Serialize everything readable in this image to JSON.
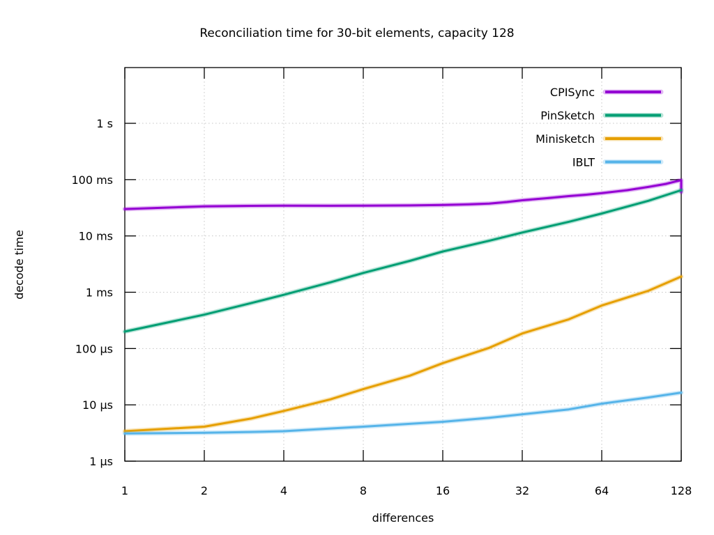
{
  "page": {
    "background": "#ffffff",
    "text_color": "#000000",
    "grid_color": "#c4c4c4"
  },
  "chart_data": {
    "type": "line",
    "title": "Reconciliation time for 30-bit elements, capacity 128",
    "xlabel": "differences",
    "ylabel": "decode time",
    "x_scale": "log2",
    "y_scale": "log10",
    "grid": true,
    "legend_position": "top-right-inside",
    "x_range": [
      1,
      128
    ],
    "y_range_us": [
      1,
      8600000
    ],
    "x_ticks": [
      1,
      2,
      4,
      8,
      16,
      32,
      64,
      128
    ],
    "y_ticks": [
      {
        "label": "1 µs",
        "us": 1
      },
      {
        "label": "10 µs",
        "us": 10
      },
      {
        "label": "100 µs",
        "us": 100
      },
      {
        "label": "1 ms",
        "us": 1000
      },
      {
        "label": "10 ms",
        "us": 10000
      },
      {
        "label": "100 ms",
        "us": 100000
      },
      {
        "label": "1 s",
        "us": 1000000
      }
    ],
    "series": [
      {
        "name": "CPISync",
        "color": "#9400d3",
        "points_us": [
          [
            1,
            30000
          ],
          [
            2,
            33500
          ],
          [
            3,
            34200
          ],
          [
            4,
            34500
          ],
          [
            6,
            34300
          ],
          [
            8,
            34500
          ],
          [
            12,
            34800
          ],
          [
            16,
            35500
          ],
          [
            20,
            36300
          ],
          [
            24,
            37500
          ],
          [
            28,
            40000
          ],
          [
            32,
            43000
          ],
          [
            40,
            47000
          ],
          [
            48,
            51000
          ],
          [
            56,
            54000
          ],
          [
            64,
            57500
          ],
          [
            80,
            65000
          ],
          [
            96,
            74000
          ],
          [
            112,
            84000
          ],
          [
            122,
            93000
          ],
          [
            128,
            98000
          ],
          [
            128,
            60000
          ]
        ]
      },
      {
        "name": "PinSketch",
        "color": "#009e73",
        "points_us": [
          [
            1,
            200
          ],
          [
            2,
            400
          ],
          [
            3,
            640
          ],
          [
            4,
            900
          ],
          [
            6,
            1500
          ],
          [
            8,
            2200
          ],
          [
            12,
            3600
          ],
          [
            16,
            5300
          ],
          [
            24,
            8200
          ],
          [
            32,
            11500
          ],
          [
            48,
            17800
          ],
          [
            64,
            25000
          ],
          [
            96,
            42000
          ],
          [
            128,
            65000
          ]
        ]
      },
      {
        "name": "Minisketch",
        "color": "#e69f00",
        "points_us": [
          [
            1,
            3.4
          ],
          [
            2,
            4.1
          ],
          [
            3,
            5.7
          ],
          [
            4,
            7.8
          ],
          [
            6,
            12.5
          ],
          [
            8,
            19
          ],
          [
            12,
            33
          ],
          [
            16,
            55
          ],
          [
            24,
            103
          ],
          [
            32,
            185
          ],
          [
            48,
            330
          ],
          [
            64,
            580
          ],
          [
            96,
            1060
          ],
          [
            128,
            1900
          ]
        ]
      },
      {
        "name": "IBLT",
        "color": "#56b4e9",
        "points_us": [
          [
            1,
            3.1
          ],
          [
            2,
            3.2
          ],
          [
            3,
            3.3
          ],
          [
            4,
            3.4
          ],
          [
            6,
            3.8
          ],
          [
            8,
            4.1
          ],
          [
            12,
            4.6
          ],
          [
            16,
            5.0
          ],
          [
            24,
            5.9
          ],
          [
            32,
            6.8
          ],
          [
            48,
            8.3
          ],
          [
            64,
            10.5
          ],
          [
            96,
            13.5
          ],
          [
            128,
            16.5
          ]
        ]
      }
    ]
  }
}
